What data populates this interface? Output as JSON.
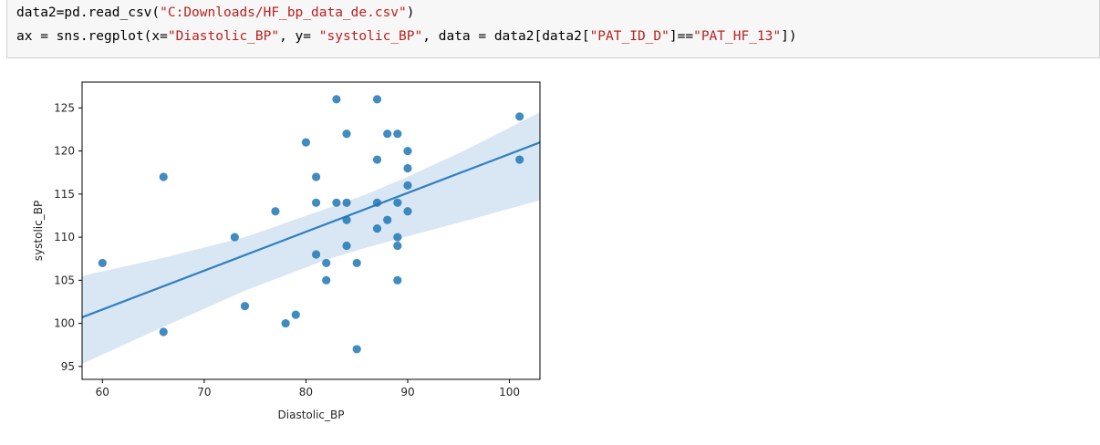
{
  "code_cell": {
    "line1": {
      "prefix": "data2=pd.read_csv(",
      "string": "\"C:Downloads/HF_bp_data_de.csv\"",
      "suffix": ")"
    },
    "line2": {
      "p1": "ax = sns.regplot(x=",
      "s1": "\"Diastolic_BP\"",
      "p2": ", y= ",
      "s2": "\"systolic_BP\"",
      "p3": ", data = data2[data2[",
      "s3": "\"PAT_ID_D\"",
      "p4": "]==",
      "s4": "\"PAT_HF_13\"",
      "p5": "])"
    }
  },
  "colors": {
    "point": "#1f77b4",
    "line": "#2f7fc1",
    "ci_band": "#aac8e6",
    "string": "#ba2121"
  },
  "chart_data": {
    "type": "scatter",
    "title": "",
    "xlabel": "Diastolic_BP",
    "ylabel": "systolic_BP",
    "xlim": [
      58,
      103
    ],
    "ylim": [
      93.5,
      128
    ],
    "xticks": [
      60,
      70,
      80,
      90,
      100
    ],
    "yticks": [
      95,
      100,
      105,
      110,
      115,
      120,
      125
    ],
    "grid": false,
    "points": [
      [
        60,
        107
      ],
      [
        66,
        117
      ],
      [
        66,
        99
      ],
      [
        73,
        110
      ],
      [
        74,
        102
      ],
      [
        77,
        113
      ],
      [
        78,
        100
      ],
      [
        79,
        101
      ],
      [
        80,
        121
      ],
      [
        81,
        117
      ],
      [
        81,
        114
      ],
      [
        81,
        108
      ],
      [
        82,
        107
      ],
      [
        82,
        105
      ],
      [
        83,
        126
      ],
      [
        83,
        114
      ],
      [
        84,
        122
      ],
      [
        84,
        114
      ],
      [
        84,
        112
      ],
      [
        84,
        109
      ],
      [
        85,
        107
      ],
      [
        85,
        97
      ],
      [
        87,
        126
      ],
      [
        87,
        119
      ],
      [
        87,
        114
      ],
      [
        87,
        111
      ],
      [
        88,
        122
      ],
      [
        88,
        112
      ],
      [
        89,
        122
      ],
      [
        89,
        114
      ],
      [
        89,
        110
      ],
      [
        89,
        109
      ],
      [
        89,
        105
      ],
      [
        90,
        120
      ],
      [
        90,
        118
      ],
      [
        90,
        116
      ],
      [
        90,
        113
      ],
      [
        101,
        124
      ],
      [
        101,
        119
      ]
    ],
    "regression": {
      "x": [
        58,
        103
      ],
      "y": [
        100.7,
        121.0
      ]
    },
    "ci_band": {
      "x": [
        58,
        66,
        74,
        82,
        86,
        90,
        96,
        103
      ],
      "upper": [
        105.5,
        107.6,
        110.0,
        113.3,
        115.0,
        117.0,
        120.3,
        124.5
      ],
      "lower": [
        95.3,
        99.6,
        103.8,
        107.4,
        108.8,
        110.1,
        112.0,
        114.3
      ]
    }
  }
}
